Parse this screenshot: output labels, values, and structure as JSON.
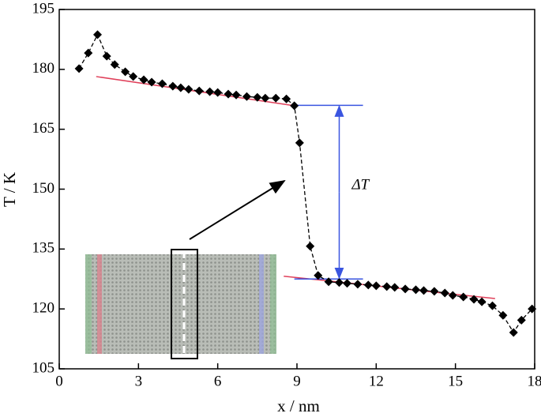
{
  "chart_data": {
    "type": "line",
    "xlabel": "x / nm",
    "ylabel": "T / K",
    "xlim": [
      0,
      18
    ],
    "xticks": [
      0,
      3,
      6,
      9,
      12,
      15,
      18
    ],
    "ylim": [
      105,
      195
    ],
    "yticks": [
      105,
      120,
      135,
      150,
      165,
      180,
      195
    ],
    "series": [
      {
        "color": "#000000",
        "x": [
          0.75,
          1.1,
          1.45,
          1.8,
          2.1,
          2.5,
          2.8,
          3.2,
          3.5,
          3.9,
          4.3,
          4.6,
          4.9,
          5.3,
          5.7,
          6.0,
          6.4,
          6.7,
          7.1,
          7.5,
          7.8,
          8.2,
          8.6,
          8.9,
          9.1,
          9.5,
          9.8,
          10.2,
          10.6,
          10.9,
          11.3,
          11.7,
          12.0,
          12.4,
          12.7,
          13.1,
          13.5,
          13.8,
          14.2,
          14.6,
          14.9,
          15.3,
          15.7,
          16.0,
          16.4,
          16.8,
          17.2,
          17.5,
          17.9
        ],
        "values": [
          180.2,
          184.1,
          188.7,
          183.3,
          181.2,
          179.4,
          178.2,
          177.4,
          176.8,
          176.4,
          175.8,
          175.4,
          175.0,
          174.6,
          174.4,
          174.2,
          173.8,
          173.6,
          173.2,
          173.0,
          172.8,
          172.8,
          172.6,
          170.9,
          161.6,
          135.7,
          128.4,
          126.8,
          126.6,
          126.4,
          126.2,
          126.0,
          125.8,
          125.6,
          125.4,
          125.0,
          124.8,
          124.6,
          124.4,
          124.0,
          123.4,
          123.0,
          122.4,
          121.8,
          120.8,
          118.4,
          114.1,
          117.2,
          120.0
        ]
      }
    ],
    "fit_lines": {
      "color": "#e0405a",
      "lines": [
        {
          "x": [
            1.4,
            8.9
          ],
          "y": [
            178.2,
            170.9
          ]
        },
        {
          "x": [
            8.5,
            16.5
          ],
          "y": [
            128.2,
            122.6
          ]
        }
      ]
    },
    "delta": {
      "label": "ΔT",
      "color": "#3a55e0",
      "x": [
        8.9,
        11.5
      ],
      "upper": 171,
      "lower": 127.5,
      "arrow_x": 10.6
    }
  }
}
